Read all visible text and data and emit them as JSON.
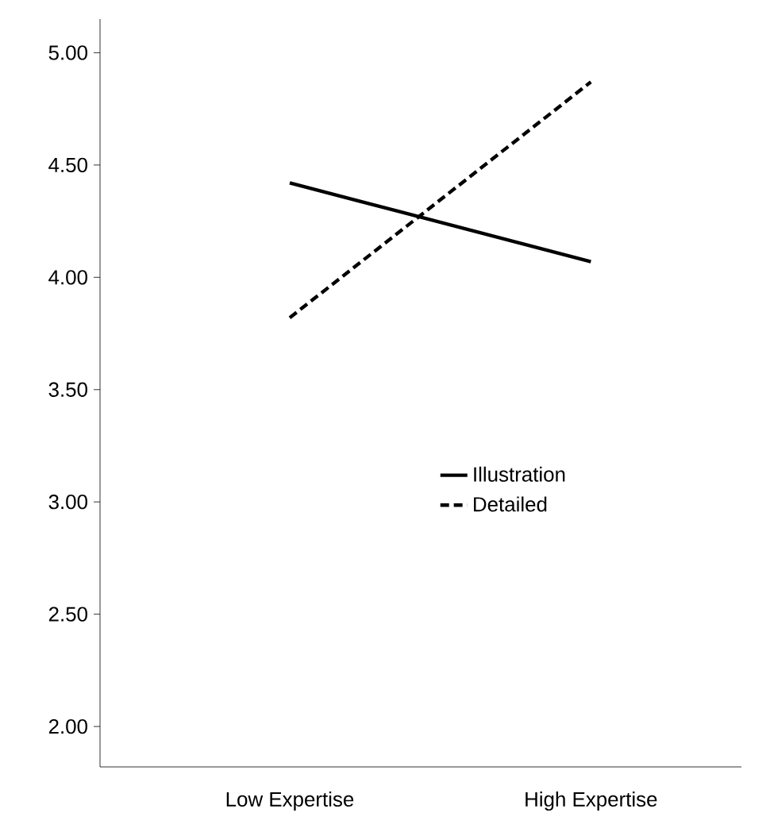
{
  "chart_data": {
    "type": "line",
    "categories": [
      "Low Expertise",
      "High Expertise"
    ],
    "series": [
      {
        "name": "Illustration",
        "color": "#000000",
        "values": [
          4.42,
          4.07
        ],
        "line_style": "solid"
      },
      {
        "name": "Detailed",
        "color": "#000000",
        "values": [
          3.82,
          4.87
        ],
        "line_style": "dashed"
      }
    ],
    "ylim": [
      1.82,
      5.15
    ],
    "yticks": [
      {
        "value": 2,
        "label": "2.00"
      },
      {
        "value": 2.5,
        "label": "2.50"
      },
      {
        "value": 3,
        "label": "3.00"
      },
      {
        "value": 3.5,
        "label": "3.50"
      },
      {
        "value": 4,
        "label": "4.00"
      },
      {
        "value": 4.5,
        "label": "4.50"
      },
      {
        "value": 5,
        "label": "5.00"
      }
    ],
    "grid": false,
    "legend": "right",
    "marker": "none"
  }
}
